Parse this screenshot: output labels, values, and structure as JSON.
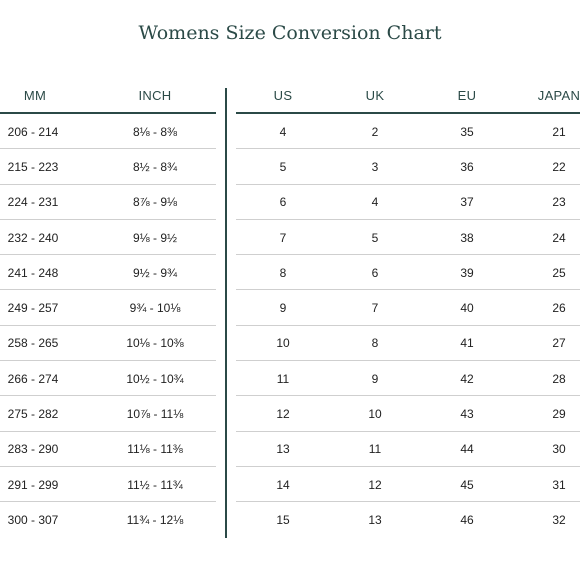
{
  "title": "Womens Size Conversion Chart",
  "headers": {
    "mm": "MM",
    "inch": "INCH",
    "us": "US",
    "uk": "UK",
    "eu": "EU",
    "japan": "JAPAN"
  },
  "rows": [
    {
      "mm": "206  -  214",
      "inch": "8⅛  -  8⅜",
      "us": "4",
      "uk": "2",
      "eu": "35",
      "japan": "21"
    },
    {
      "mm": "215  -  223",
      "inch": "8½  -  8¾",
      "us": "5",
      "uk": "3",
      "eu": "36",
      "japan": "22"
    },
    {
      "mm": "224  -  231",
      "inch": "8⅞  -  9⅛",
      "us": "6",
      "uk": "4",
      "eu": "37",
      "japan": "23"
    },
    {
      "mm": "232  -  240",
      "inch": "9⅛  -  9½",
      "us": "7",
      "uk": "5",
      "eu": "38",
      "japan": "24"
    },
    {
      "mm": "241  -  248",
      "inch": "9½  -  9¾",
      "us": "8",
      "uk": "6",
      "eu": "39",
      "japan": "25"
    },
    {
      "mm": "249  -  257",
      "inch": "9¾  -  10⅛",
      "us": "9",
      "uk": "7",
      "eu": "40",
      "japan": "26"
    },
    {
      "mm": "258  -  265",
      "inch": "10⅛  -  10⅜",
      "us": "10",
      "uk": "8",
      "eu": "41",
      "japan": "27"
    },
    {
      "mm": "266  -  274",
      "inch": "10½  -  10¾",
      "us": "11",
      "uk": "9",
      "eu": "42",
      "japan": "28"
    },
    {
      "mm": "275  -  282",
      "inch": "10⅞  -  11⅛",
      "us": "12",
      "uk": "10",
      "eu": "43",
      "japan": "29"
    },
    {
      "mm": "283  -  290",
      "inch": "11⅛  -  11⅜",
      "us": "13",
      "uk": "11",
      "eu": "44",
      "japan": "30"
    },
    {
      "mm": "291  -  299",
      "inch": "11½  -  11¾",
      "us": "14",
      "uk": "12",
      "eu": "45",
      "japan": "31"
    },
    {
      "mm": "300  -  307",
      "inch": "11¾  -  12⅛",
      "us": "15",
      "uk": "13",
      "eu": "46",
      "japan": "32"
    }
  ],
  "colors": {
    "accent": "#2b4a47",
    "rule": "#cfcfcf",
    "text": "#222222"
  }
}
